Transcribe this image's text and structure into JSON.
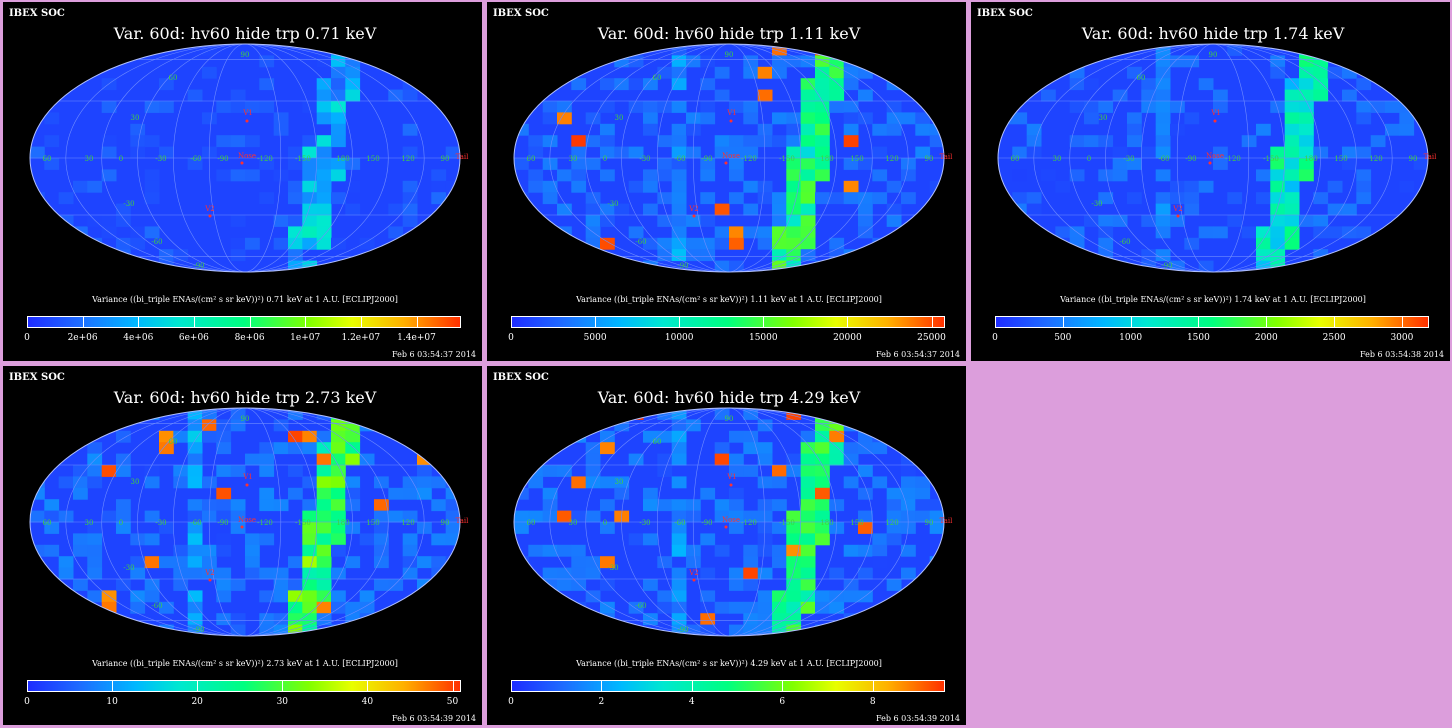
{
  "chart_data": [
    {
      "type": "heatmap",
      "org": "IBEX SOC",
      "title": "Var. 60d: hv60 hide trp 0.71 keV",
      "colorbar_label": "Variance ((bi_triple ENAs/(cm² s sr keV))²) 0.71 keV at 1 A.U. [ECLIPJ2000]",
      "colorbar_range": [
        0,
        15600000
      ],
      "colorbar_ticks": [
        "0",
        "2e+06",
        "4e+06",
        "6e+06",
        "8e+06",
        "1e+07",
        "1.2e+07",
        "1.4e+07"
      ],
      "colorbar_tick_values": [
        0,
        2000000,
        4000000,
        6000000,
        8000000,
        10000000,
        12000000,
        14000000
      ],
      "timestamp": "Feb  6 03:54:37 2014",
      "hot_ribbon": 0.05
    },
    {
      "type": "heatmap",
      "org": "IBEX SOC",
      "title": "Var. 60d: hv60 hide trp 1.11 keV",
      "colorbar_label": "Variance ((bi_triple ENAs/(cm² s sr keV))²) 1.11 keV at 1 A.U. [ECLIPJ2000]",
      "colorbar_range": [
        0,
        25800
      ],
      "colorbar_ticks": [
        "0",
        "5000",
        "10000",
        "15000",
        "20000",
        "25000"
      ],
      "colorbar_tick_values": [
        0,
        5000,
        10000,
        15000,
        20000,
        25000
      ],
      "timestamp": "Feb  6 03:54:37 2014",
      "hot_ribbon": 0.45
    },
    {
      "type": "heatmap",
      "org": "IBEX SOC",
      "title": "Var. 60d: hv60 hide trp 1.74 keV",
      "colorbar_label": "Variance ((bi_triple ENAs/(cm² s sr keV))²) 1.74 keV at 1 A.U. [ECLIPJ2000]",
      "colorbar_range": [
        0,
        3200
      ],
      "colorbar_ticks": [
        "0",
        "500",
        "1000",
        "1500",
        "2000",
        "2500",
        "3000"
      ],
      "colorbar_tick_values": [
        0,
        500,
        1000,
        1500,
        2000,
        2500,
        3000
      ],
      "timestamp": "Feb  6 03:54:38 2014",
      "hot_ribbon": 0.3
    },
    {
      "type": "heatmap",
      "org": "IBEX SOC",
      "title": "Var. 60d: hv60 hide trp 2.73 keV",
      "colorbar_label": "Variance ((bi_triple ENAs/(cm² s sr keV))²) 2.73 keV at 1 A.U. [ECLIPJ2000]",
      "colorbar_range": [
        0,
        51
      ],
      "colorbar_ticks": [
        "0",
        "10",
        "20",
        "30",
        "40",
        "50"
      ],
      "colorbar_tick_values": [
        0,
        10,
        20,
        30,
        40,
        50
      ],
      "timestamp": "Feb  6 03:54:39 2014",
      "hot_ribbon": 0.55
    },
    {
      "type": "heatmap",
      "org": "IBEX SOC",
      "title": "Var. 60d: hv60 hide trp 4.29 keV",
      "colorbar_label": "Variance ((bi_triple ENAs/(cm² s sr keV))²) 4.29 keV at 1 A.U. [ECLIPJ2000]",
      "colorbar_range": [
        0,
        9.6
      ],
      "colorbar_ticks": [
        "0",
        "2",
        "4",
        "6",
        "8"
      ],
      "colorbar_tick_values": [
        0,
        2,
        4,
        6,
        8
      ],
      "timestamp": "Feb  6 03:54:39 2014",
      "hot_ribbon": 0.5
    }
  ],
  "map_labels": {
    "lat_n60": "60",
    "lat_n30": "30",
    "lat_s30": "-30",
    "lat_s60": "-60",
    "lat_90": "90",
    "lat_m90": "-90",
    "lon": [
      "60",
      "30",
      "0",
      "-30",
      "-60",
      "-90",
      "-120",
      "-150",
      "180",
      "150",
      "120",
      "90"
    ],
    "v1": "V1",
    "v2": "V2",
    "nose": "Nose",
    "tail": "Tail"
  },
  "colors": {
    "background": "#000000",
    "page_background": "#dc9edc",
    "map_base": "#1e44ff",
    "marker": "#ff3030",
    "grid": "#6f8cff"
  }
}
